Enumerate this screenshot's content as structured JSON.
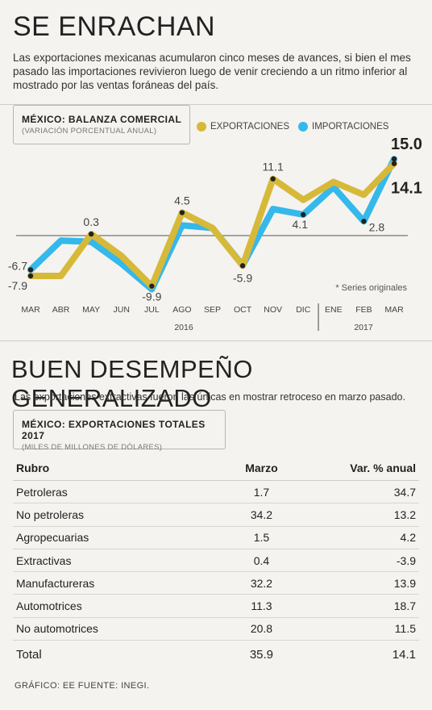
{
  "header": {
    "title": "SE ENRACHAN",
    "lead": "Las exportaciones mexicanas acumularon cinco meses de avances, si bien el mes pasado las importaciones revivieron luego de venir creciendo a un ritmo inferior al mostrado por las ventas foráneas del país."
  },
  "chart_box": {
    "title": "MÉXICO: BALANZA COMERCIAL",
    "subtitle": "(VARIACIÓN PORCENTUAL ANUAL)"
  },
  "legend": {
    "exports": "EXPORTACIONES",
    "imports": "IMPORTACIONES"
  },
  "colors": {
    "exports": "#d7b93a",
    "imports": "#35b8ea"
  },
  "chart_note": "* Series originales",
  "chart_data": {
    "type": "line",
    "x": [
      "MAR",
      "ABR",
      "MAY",
      "JUN",
      "JUL",
      "AGO",
      "SEP",
      "OCT",
      "NOV",
      "DIC",
      "ENE",
      "FEB",
      "MAR"
    ],
    "year_labels": [
      "2016",
      "2017"
    ],
    "series": [
      {
        "name": "EXPORTACIONES",
        "values": [
          -7.9,
          -7.9,
          0.3,
          -4.0,
          -9.9,
          4.5,
          1.5,
          -5.9,
          11.1,
          7.0,
          10.5,
          8.0,
          14.1
        ]
      },
      {
        "name": "IMPORTACIONES",
        "values": [
          -6.7,
          -1.0,
          -1.2,
          -5.5,
          -10.5,
          2.0,
          1.5,
          -5.8,
          5.2,
          4.1,
          9.5,
          2.8,
          15.0
        ]
      }
    ],
    "labels": [
      {
        "text": "-6.7",
        "series": 1,
        "i": 0
      },
      {
        "text": "-7.9",
        "series": 0,
        "i": 0
      },
      {
        "text": "0.3",
        "series": 0,
        "i": 2
      },
      {
        "text": "-9.9",
        "series": 0,
        "i": 4
      },
      {
        "text": "4.5",
        "series": 0,
        "i": 5
      },
      {
        "text": "-5.9",
        "series": 0,
        "i": 7
      },
      {
        "text": "11.1",
        "series": 0,
        "i": 8
      },
      {
        "text": "4.1",
        "series": 1,
        "i": 9
      },
      {
        "text": "2.8",
        "series": 1,
        "i": 11
      },
      {
        "text": "15.0",
        "series": 1,
        "i": 12
      },
      {
        "text": "14.1",
        "series": 0,
        "i": 12
      }
    ],
    "ylim": [
      -12,
      16
    ],
    "zero_line": true
  },
  "section2": {
    "title": "BUEN DESEMPEÑO GENERALIZADO",
    "lead": "Las exportaciones extractivas fueron las únicas en mostrar retroceso en marzo pasado.",
    "box_title": "MÉXICO: EXPORTACIONES TOTALES 2017",
    "box_subtitle": "(MILES DE MILLONES DE DÓLARES)"
  },
  "table": {
    "headers": [
      "Rubro",
      "Marzo",
      "Var. % anual"
    ],
    "rows": [
      [
        "Petroleras",
        "1.7",
        "34.7"
      ],
      [
        "No petroleras",
        "34.2",
        "13.2"
      ],
      [
        "Agropecuarias",
        "1.5",
        "4.2"
      ],
      [
        "Extractivas",
        "0.4",
        "-3.9"
      ],
      [
        "Manufactureras",
        "32.2",
        "13.9"
      ],
      [
        "Automotrices",
        "11.3",
        "18.7"
      ],
      [
        "No automotrices",
        "20.8",
        "11.5"
      ]
    ],
    "total": [
      "Total",
      "35.9",
      "14.1"
    ]
  },
  "footer": "GRÁFICO: EE  FUENTE: INEGI."
}
